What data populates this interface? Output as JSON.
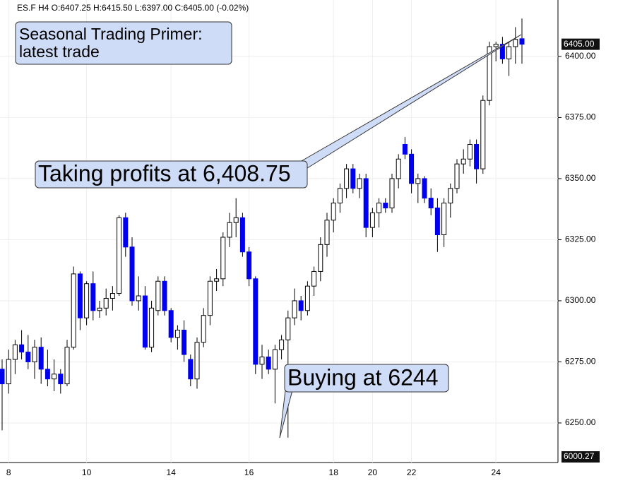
{
  "chart_data": {
    "type": "candlestick",
    "header": "ES.F  H4  O:6407.25  H:6415.50  L:6397.00  C:6405.00  (-0.02%)",
    "annotations": [
      {
        "lines": [
          "Seasonal Trading Primer:",
          "latest trade"
        ]
      },
      {
        "lines": [
          "Taking profits at 6,408.75"
        ]
      },
      {
        "lines": [
          "Buying at 6244"
        ]
      }
    ],
    "categories": [
      null,
      "8",
      null,
      null,
      null,
      null,
      null,
      null,
      null,
      null,
      null,
      null,
      null,
      "10",
      null,
      null,
      null,
      null,
      null,
      null,
      null,
      null,
      null,
      null,
      null,
      null,
      "14",
      null,
      null,
      null,
      null,
      null,
      null,
      null,
      null,
      null,
      null,
      null,
      "16",
      null,
      null,
      null,
      null,
      null,
      null,
      null,
      null,
      null,
      null,
      null,
      null,
      "18",
      null,
      null,
      null,
      null,
      null,
      "20",
      null,
      null,
      null,
      null,
      null,
      "22",
      null,
      null,
      null,
      null,
      null,
      null,
      null,
      null,
      null,
      null,
      null,
      null,
      "24",
      null,
      null,
      null,
      null
    ],
    "open": [
      6272,
      6266,
      6276,
      6282,
      6279,
      6275,
      6281,
      6272,
      6268,
      6270,
      6266,
      6281,
      6311,
      6293,
      6307,
      6296,
      6297,
      6301,
      6303,
      6334,
      6322,
      6300,
      6302,
      6281,
      6296,
      6308,
      6296,
      6285,
      6288,
      6276,
      6268,
      6283,
      6294,
      6308,
      6309,
      6326,
      6332,
      6334,
      6320,
      6309,
      6274,
      6277,
      6272,
      6280,
      6284,
      6293,
      6300,
      6296,
      6306,
      6312,
      6323,
      6333,
      6340,
      6346,
      6354,
      6346,
      6350,
      6330,
      6336,
      6340,
      6338,
      6350,
      6364,
      6360,
      6348,
      6350,
      6342,
      6338,
      6327,
      6340,
      6346,
      6356,
      6358,
      6364,
      6354,
      6382,
      6404,
      6405,
      6399,
      6404,
      6407.25
    ],
    "high": [
      6276,
      6280,
      6284,
      6288,
      6286,
      6284,
      6285,
      6280,
      6276,
      6272,
      6284,
      6314,
      6312,
      6308,
      6312,
      6300,
      6305,
      6306,
      6335,
      6336,
      6326,
      6310,
      6306,
      6300,
      6310,
      6310,
      6297,
      6290,
      6292,
      6278,
      6285,
      6297,
      6310,
      6313,
      6328,
      6336,
      6342,
      6336,
      6322,
      6310,
      6282,
      6280,
      6282,
      6286,
      6296,
      6305,
      6302,
      6308,
      6314,
      6326,
      6336,
      6342,
      6348,
      6356,
      6356,
      6352,
      6352,
      6338,
      6342,
      6342,
      6352,
      6360,
      6367,
      6362,
      6352,
      6351,
      6346,
      6342,
      6342,
      6348,
      6358,
      6362,
      6366,
      6366,
      6384,
      6406,
      6406,
      6408,
      6406,
      6412,
      6415.5
    ],
    "low": [
      6247,
      6262,
      6270,
      6276,
      6272,
      6268,
      6266,
      6265,
      6263,
      6262,
      6265,
      6280,
      6288,
      6290,
      6292,
      6293,
      6294,
      6296,
      6302,
      6318,
      6298,
      6296,
      6280,
      6279,
      6294,
      6294,
      6283,
      6280,
      6275,
      6265,
      6264,
      6281,
      6290,
      6304,
      6306,
      6322,
      6326,
      6318,
      6306,
      6270,
      6268,
      6270,
      6258,
      6276,
      6244,
      6290,
      6292,
      6294,
      6302,
      6308,
      6318,
      6328,
      6336,
      6342,
      6344,
      6342,
      6326,
      6326,
      6330,
      6336,
      6336,
      6346,
      6358,
      6344,
      6340,
      6340,
      6335,
      6320,
      6322,
      6334,
      6344,
      6352,
      6355,
      6348,
      6352,
      6380,
      6398,
      6397,
      6392,
      6397,
      6397
    ],
    "close": [
      6266,
      6276,
      6282,
      6279,
      6275,
      6281,
      6272,
      6268,
      6270,
      6266,
      6281,
      6311,
      6293,
      6307,
      6296,
      6297,
      6301,
      6303,
      6334,
      6322,
      6300,
      6302,
      6281,
      6297,
      6308,
      6296,
      6285,
      6288,
      6278,
      6268,
      6283,
      6294,
      6308,
      6309,
      6326,
      6332,
      6334,
      6320,
      6309,
      6274,
      6277,
      6272,
      6280,
      6284,
      6293,
      6300,
      6296,
      6306,
      6312,
      6323,
      6333,
      6340,
      6346,
      6354,
      6346,
      6350,
      6330,
      6336,
      6340,
      6338,
      6350,
      6358,
      6360,
      6348,
      6350,
      6342,
      6338,
      6327,
      6340,
      6346,
      6356,
      6358,
      6364,
      6354,
      6382,
      6404,
      6405,
      6399,
      6404,
      6407,
      6405
    ],
    "up_color": "#ffffff",
    "down_color": "#0000ee",
    "edge_color": "#000000",
    "ylim": [
      6233.8,
      6423.1
    ],
    "yticks": [
      {
        "value": 6250,
        "label": "6250.00"
      },
      {
        "value": 6275,
        "label": "6275.00"
      },
      {
        "value": 6300,
        "label": "6300.00"
      },
      {
        "value": 6325,
        "label": "6325.00"
      },
      {
        "value": 6350,
        "label": "6350.00"
      },
      {
        "value": 6375,
        "label": "6375.00"
      },
      {
        "value": 6400,
        "label": "6400.00"
      }
    ],
    "last_price": {
      "value": 6405,
      "label": "6405.00"
    },
    "bottom_label": "6000.27",
    "grid": true
  }
}
